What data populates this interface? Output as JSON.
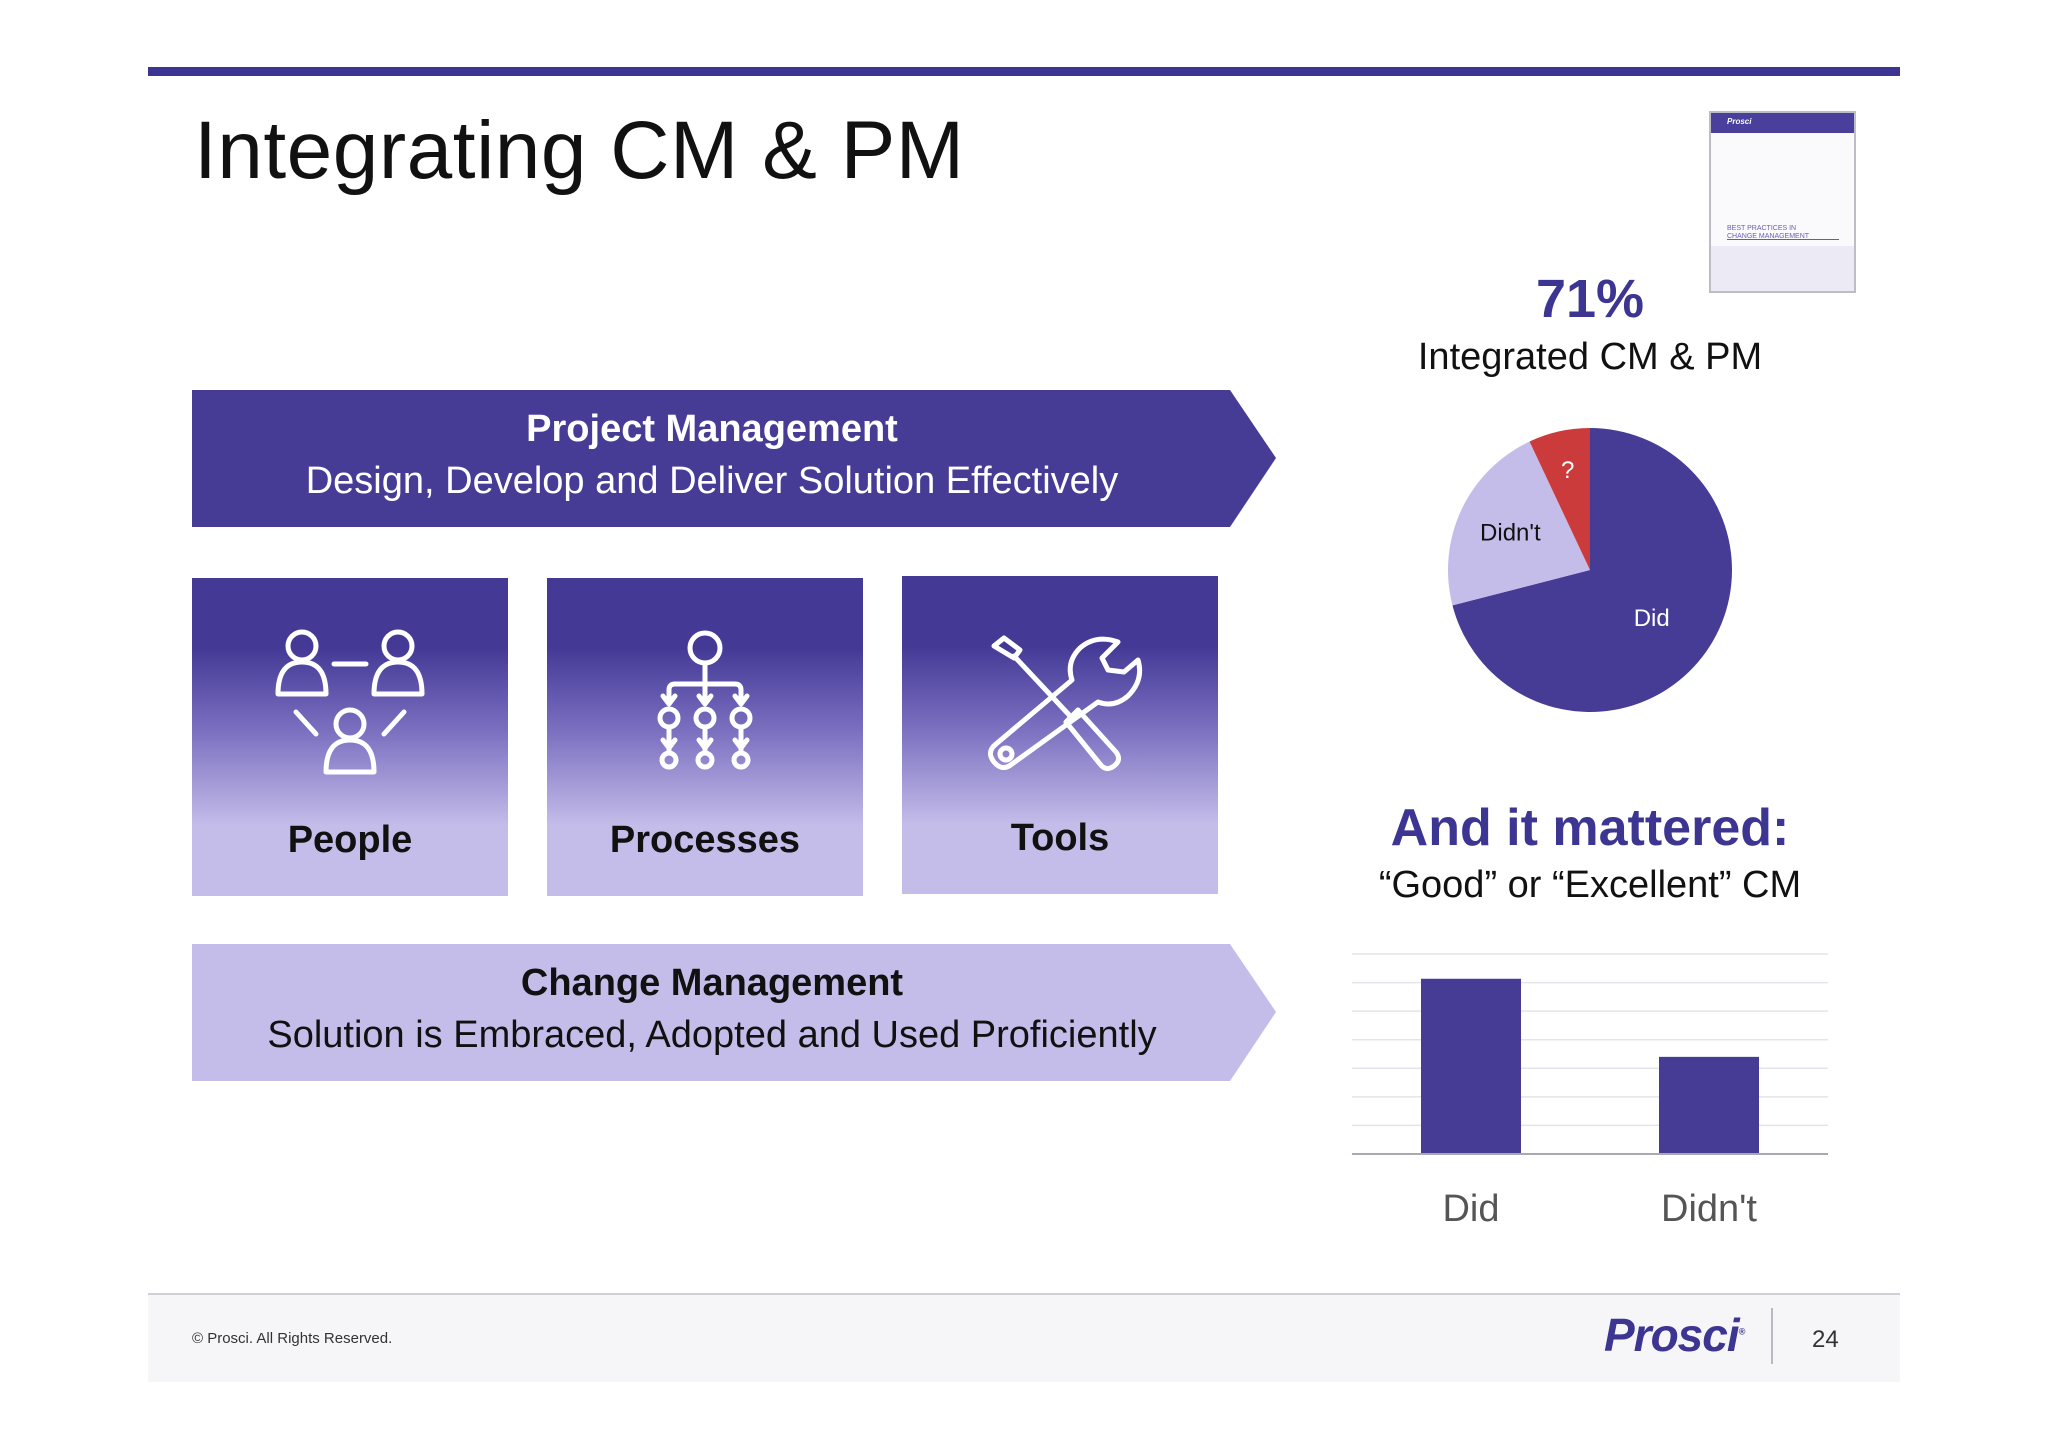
{
  "slide": {
    "title": "Integrating CM & PM",
    "page_number": "24",
    "copyright": "© Prosci. All Rights Reserved.",
    "logo": "Prosci",
    "logo_mark": "®"
  },
  "report_thumbnail": {
    "brand": "Prosci",
    "title_line1": "BEST PRACTICES IN",
    "title_line2": "CHANGE MANAGEMENT"
  },
  "project_management": {
    "title": "Project Management",
    "subtitle": "Design, Develop and Deliver Solution Effectively",
    "color": "#463c96"
  },
  "tiles": [
    {
      "label": "People",
      "icon": "people-network-icon"
    },
    {
      "label": "Processes",
      "icon": "process-hierarchy-icon"
    },
    {
      "label": "Tools",
      "icon": "wrench-screwdriver-icon"
    }
  ],
  "change_management": {
    "title": "Change Management",
    "subtitle": "Solution is Embraced, Adopted and Used Proficiently",
    "color": "#c4bde9"
  },
  "stat": {
    "percent": "71%",
    "label": "Integrated CM & PM"
  },
  "mattered": {
    "title": "And it mattered:",
    "subtitle": "“Good” or “Excellent” CM"
  },
  "colors": {
    "accent": "#3c3591",
    "light_purple": "#c4bde9",
    "red": "#cc3b3b"
  },
  "chart_data": [
    {
      "type": "pie",
      "slices": [
        {
          "label": "Did",
          "value": 71,
          "color": "#463c96"
        },
        {
          "label": "Didn't",
          "value": 22,
          "color": "#c4bde9"
        },
        {
          "label": "?",
          "value": 7,
          "color": "#cc3b3b"
        }
      ]
    },
    {
      "type": "bar",
      "categories": [
        "Did",
        "Didn't"
      ],
      "values": [
        92,
        51
      ],
      "ylim": [
        0,
        105
      ],
      "grid": true,
      "color": "#463c96"
    }
  ]
}
